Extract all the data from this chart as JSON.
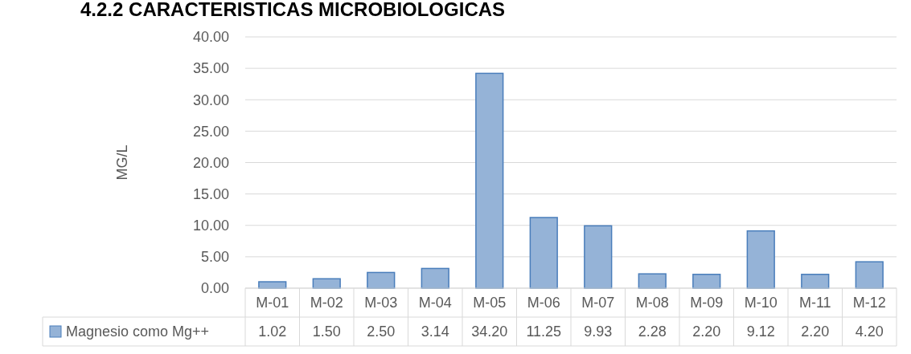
{
  "chart_data": {
    "type": "bar",
    "title": "4.2.2 CARACTERISTICAS MICROBIOLOGICAS",
    "ylabel": "MG/L",
    "categories": [
      "M-01",
      "M-02",
      "M-03",
      "M-04",
      "M-05",
      "M-06",
      "M-07",
      "M-08",
      "M-09",
      "M-10",
      "M-11",
      "M-12"
    ],
    "series": [
      {
        "name": "Magnesio como Mg++",
        "color": "#95b3d7",
        "values": [
          1.02,
          1.5,
          2.5,
          3.14,
          34.2,
          11.25,
          9.93,
          2.28,
          2.2,
          9.12,
          2.2,
          4.2
        ],
        "value_labels": [
          "1.02",
          "1.50",
          "2.50",
          "3.14",
          "34.20",
          "11.25",
          "9.93",
          "2.28",
          "2.20",
          "9.12",
          "2.20",
          "4.20"
        ]
      }
    ],
    "ylim": [
      0,
      40
    ],
    "yticks": [
      {
        "value": 0,
        "label": "0.00"
      },
      {
        "value": 5,
        "label": "5.00"
      },
      {
        "value": 10,
        "label": "10.00"
      },
      {
        "value": 15,
        "label": "15.00"
      },
      {
        "value": 20,
        "label": "20.00"
      },
      {
        "value": 25,
        "label": "25.00"
      },
      {
        "value": 30,
        "label": "30.00"
      },
      {
        "value": 35,
        "label": "35.00"
      },
      {
        "value": 40,
        "label": "40.00"
      }
    ],
    "grid": "y",
    "legend": "bottom"
  }
}
